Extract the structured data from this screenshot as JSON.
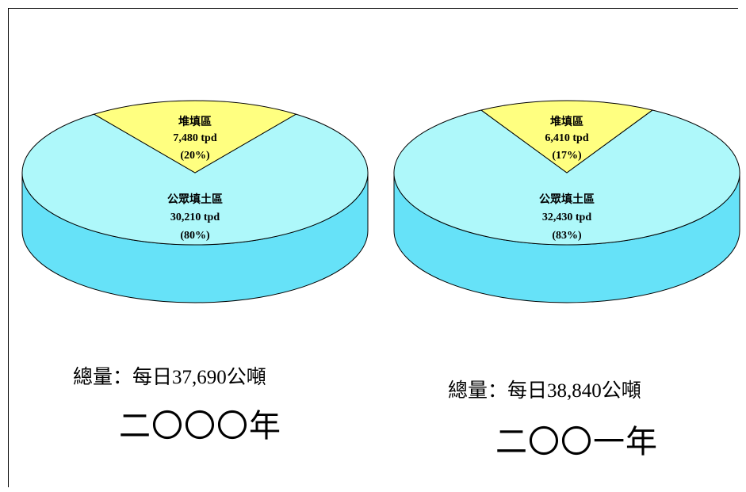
{
  "colors": {
    "landfill": "#FFFF80",
    "public_fill_top": "#AEF8FA",
    "public_fill_side": "#66E2F8",
    "outline": "#000000"
  },
  "chart_data": [
    {
      "type": "pie",
      "slices": [
        {
          "label": "堆填區",
          "value_text": "7,480 tpd",
          "pct_text": "(20%)",
          "value": 7480,
          "percent": 20
        },
        {
          "label": "公眾填土區",
          "value_text": "30,210 tpd",
          "pct_text": "(80%)",
          "value": 30210,
          "percent": 80
        }
      ],
      "total": "總量：每日37,690公噸",
      "year": "二〇〇〇年"
    },
    {
      "type": "pie",
      "slices": [
        {
          "label": "堆填區",
          "value_text": "6,410 tpd",
          "pct_text": "(17%)",
          "value": 6410,
          "percent": 17
        },
        {
          "label": "公眾填土區",
          "value_text": "32,430 tpd",
          "pct_text": "(83%)",
          "value": 32430,
          "percent": 83
        }
      ],
      "total": "總量：每日38,840公噸",
      "year": "二〇〇一年"
    }
  ]
}
